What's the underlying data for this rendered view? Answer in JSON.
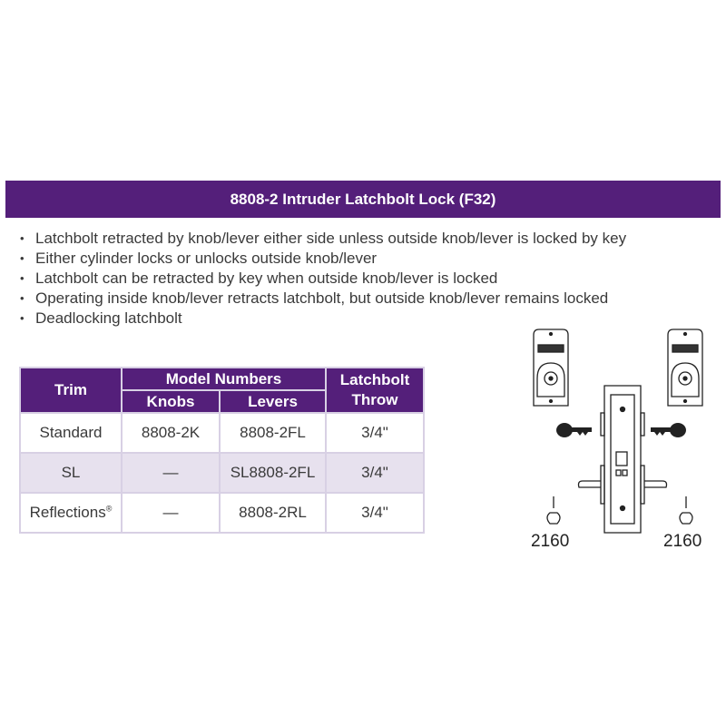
{
  "title": "8808-2 Intruder Latchbolt Lock (F32)",
  "features": [
    "Latchbolt retracted by knob/lever either side unless outside knob/lever is locked by key",
    "Either cylinder locks or unlocks outside knob/lever",
    "Latchbolt can be retracted by key when outside knob/lever is locked",
    "Operating inside knob/lever retracts latchbolt, but outside knob/lever remains locked",
    "Deadlocking latchbolt"
  ],
  "table": {
    "headers": {
      "trim": "Trim",
      "model_numbers": "Model Numbers",
      "knobs": "Knobs",
      "levers": "Levers",
      "throw": "Latchbolt Throw"
    },
    "rows": [
      {
        "trim": "Standard",
        "knobs": "8808-2K",
        "levers": "8808-2FL",
        "throw": "3/4\""
      },
      {
        "trim": "SL",
        "knobs": "—",
        "levers": "SL8808-2FL",
        "throw": "3/4\""
      },
      {
        "trim": "Reflections",
        "trim_mark": "®",
        "knobs": "—",
        "levers": "8808-2RL",
        "throw": "3/4\""
      }
    ]
  },
  "diagram": {
    "left_label": "2160",
    "right_label": "2160"
  },
  "colors": {
    "accent": "#541f7a",
    "row_alt": "#e7e1ee"
  }
}
